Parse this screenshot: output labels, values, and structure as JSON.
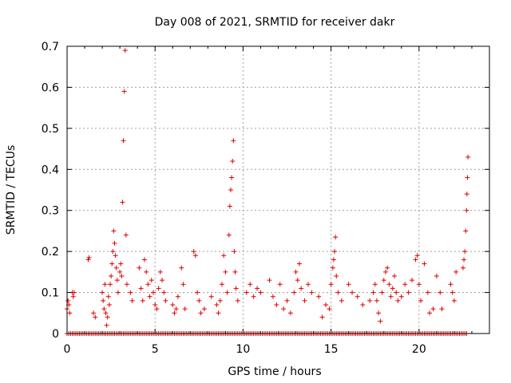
{
  "chart_data": {
    "type": "scatter",
    "title": "Day 008 of 2021, SRMTID for receiver dakr",
    "xlabel": "GPS time / hours",
    "ylabel": "SRMTID / TECUs",
    "xlim": [
      0,
      24
    ],
    "ylim": [
      0,
      0.7
    ],
    "xticks": [
      0,
      5,
      10,
      15,
      20
    ],
    "yticks": [
      0,
      0.1,
      0.2,
      0.3,
      0.4,
      0.5,
      0.6,
      0.7
    ],
    "xtick_labels": [
      "0",
      "5",
      "10",
      "15",
      "20"
    ],
    "ytick_labels": [
      "0",
      "0.1",
      "0.2",
      "0.3",
      "0.4",
      "0.5",
      "0.6",
      "0.7"
    ],
    "grid": true,
    "marker": "+",
    "series": [
      {
        "name": "SRMTID",
        "color": "#e00000",
        "points": [
          [
            0.0,
            0.06
          ],
          [
            0.05,
            0.08
          ],
          [
            0.1,
            0.07
          ],
          [
            0.15,
            0.05
          ],
          [
            0.3,
            0.1
          ],
          [
            0.35,
            0.09
          ],
          [
            0.4,
            0.1
          ],
          [
            1.2,
            0.18
          ],
          [
            1.25,
            0.185
          ],
          [
            1.5,
            0.05
          ],
          [
            1.6,
            0.04
          ],
          [
            2.0,
            0.1
          ],
          [
            2.05,
            0.08
          ],
          [
            2.1,
            0.06
          ],
          [
            2.15,
            0.12
          ],
          [
            2.2,
            0.05
          ],
          [
            2.25,
            0.02
          ],
          [
            2.3,
            0.04
          ],
          [
            2.35,
            0.09
          ],
          [
            2.4,
            0.07
          ],
          [
            2.45,
            0.12
          ],
          [
            2.5,
            0.14
          ],
          [
            2.55,
            0.17
          ],
          [
            2.6,
            0.2
          ],
          [
            2.65,
            0.25
          ],
          [
            2.7,
            0.22
          ],
          [
            2.75,
            0.19
          ],
          [
            2.8,
            0.16
          ],
          [
            2.85,
            0.13
          ],
          [
            2.9,
            0.1
          ],
          [
            3.0,
            0.15
          ],
          [
            3.05,
            0.17
          ],
          [
            3.1,
            0.14
          ],
          [
            3.15,
            0.32
          ],
          [
            3.2,
            0.47
          ],
          [
            3.25,
            0.59
          ],
          [
            3.3,
            0.69
          ],
          [
            3.35,
            0.24
          ],
          [
            3.4,
            0.12
          ],
          [
            3.6,
            0.1
          ],
          [
            3.7,
            0.08
          ],
          [
            4.1,
            0.16
          ],
          [
            4.2,
            0.11
          ],
          [
            4.3,
            0.08
          ],
          [
            4.4,
            0.18
          ],
          [
            4.5,
            0.15
          ],
          [
            4.6,
            0.12
          ],
          [
            4.7,
            0.09
          ],
          [
            4.8,
            0.13
          ],
          [
            4.9,
            0.1
          ],
          [
            5.0,
            0.07
          ],
          [
            5.1,
            0.06
          ],
          [
            5.2,
            0.11
          ],
          [
            5.3,
            0.15
          ],
          [
            5.4,
            0.13
          ],
          [
            5.5,
            0.1
          ],
          [
            5.6,
            0.08
          ],
          [
            6.0,
            0.07
          ],
          [
            6.1,
            0.05
          ],
          [
            6.2,
            0.06
          ],
          [
            6.3,
            0.09
          ],
          [
            6.5,
            0.16
          ],
          [
            6.6,
            0.12
          ],
          [
            6.7,
            0.06
          ],
          [
            7.2,
            0.2
          ],
          [
            7.3,
            0.19
          ],
          [
            7.4,
            0.1
          ],
          [
            7.5,
            0.08
          ],
          [
            7.6,
            0.05
          ],
          [
            7.8,
            0.06
          ],
          [
            8.2,
            0.09
          ],
          [
            8.5,
            0.07
          ],
          [
            8.6,
            0.05
          ],
          [
            8.7,
            0.08
          ],
          [
            8.8,
            0.12
          ],
          [
            8.9,
            0.19
          ],
          [
            9.0,
            0.15
          ],
          [
            9.1,
            0.1
          ],
          [
            9.2,
            0.24
          ],
          [
            9.25,
            0.31
          ],
          [
            9.3,
            0.35
          ],
          [
            9.35,
            0.38
          ],
          [
            9.4,
            0.42
          ],
          [
            9.45,
            0.47
          ],
          [
            9.5,
            0.2
          ],
          [
            9.55,
            0.15
          ],
          [
            9.6,
            0.11
          ],
          [
            9.7,
            0.08
          ],
          [
            10.2,
            0.1
          ],
          [
            10.4,
            0.12
          ],
          [
            10.6,
            0.09
          ],
          [
            10.8,
            0.11
          ],
          [
            11.0,
            0.1
          ],
          [
            11.5,
            0.13
          ],
          [
            11.7,
            0.09
          ],
          [
            11.9,
            0.07
          ],
          [
            12.1,
            0.12
          ],
          [
            12.3,
            0.06
          ],
          [
            12.5,
            0.08
          ],
          [
            12.7,
            0.05
          ],
          [
            12.9,
            0.1
          ],
          [
            13.0,
            0.15
          ],
          [
            13.1,
            0.13
          ],
          [
            13.2,
            0.17
          ],
          [
            13.3,
            0.11
          ],
          [
            13.5,
            0.08
          ],
          [
            13.7,
            0.12
          ],
          [
            13.9,
            0.1
          ],
          [
            14.3,
            0.09
          ],
          [
            14.5,
            0.04
          ],
          [
            14.7,
            0.07
          ],
          [
            14.9,
            0.06
          ],
          [
            15.0,
            0.12
          ],
          [
            15.1,
            0.16
          ],
          [
            15.15,
            0.18
          ],
          [
            15.2,
            0.2
          ],
          [
            15.25,
            0.235
          ],
          [
            15.3,
            0.14
          ],
          [
            15.4,
            0.1
          ],
          [
            15.6,
            0.08
          ],
          [
            16.0,
            0.12
          ],
          [
            16.2,
            0.1
          ],
          [
            16.5,
            0.09
          ],
          [
            16.8,
            0.07
          ],
          [
            17.2,
            0.08
          ],
          [
            17.4,
            0.1
          ],
          [
            17.5,
            0.12
          ],
          [
            17.6,
            0.08
          ],
          [
            17.7,
            0.05
          ],
          [
            17.8,
            0.03
          ],
          [
            17.9,
            0.1
          ],
          [
            18.0,
            0.13
          ],
          [
            18.1,
            0.15
          ],
          [
            18.2,
            0.16
          ],
          [
            18.3,
            0.12
          ],
          [
            18.4,
            0.09
          ],
          [
            18.5,
            0.11
          ],
          [
            18.6,
            0.14
          ],
          [
            18.7,
            0.1
          ],
          [
            18.8,
            0.08
          ],
          [
            19.0,
            0.09
          ],
          [
            19.2,
            0.12
          ],
          [
            19.4,
            0.1
          ],
          [
            19.6,
            0.13
          ],
          [
            19.8,
            0.18
          ],
          [
            19.9,
            0.19
          ],
          [
            20.0,
            0.12
          ],
          [
            20.1,
            0.08
          ],
          [
            20.3,
            0.17
          ],
          [
            20.5,
            0.1
          ],
          [
            20.6,
            0.05
          ],
          [
            20.8,
            0.06
          ],
          [
            21.0,
            0.14
          ],
          [
            21.2,
            0.1
          ],
          [
            21.3,
            0.06
          ],
          [
            21.8,
            0.12
          ],
          [
            21.9,
            0.1
          ],
          [
            22.0,
            0.08
          ],
          [
            22.1,
            0.15
          ],
          [
            22.5,
            0.16
          ],
          [
            22.55,
            0.18
          ],
          [
            22.6,
            0.2
          ],
          [
            22.65,
            0.25
          ],
          [
            22.7,
            0.3
          ],
          [
            22.72,
            0.34
          ],
          [
            22.75,
            0.38
          ],
          [
            22.78,
            0.43
          ]
        ]
      }
    ],
    "zero_points": [
      0.0,
      0.1,
      0.2,
      0.3,
      0.4,
      0.5,
      0.6,
      0.7,
      0.8,
      0.9,
      1.0,
      1.1,
      1.2,
      1.3,
      1.4,
      1.5,
      1.6,
      1.7,
      1.8,
      1.9,
      2.0,
      2.1,
      2.2,
      2.3,
      2.4,
      2.5,
      2.6,
      2.7,
      2.8,
      2.9,
      3.0,
      3.1,
      3.2,
      3.3,
      3.4,
      3.5,
      3.6,
      3.7,
      3.8,
      3.9,
      4.0,
      4.1,
      4.2,
      4.3,
      4.4,
      4.5,
      4.6,
      4.7,
      4.8,
      4.9,
      5.0,
      5.1,
      5.2,
      5.3,
      5.4,
      5.5,
      5.6,
      5.7,
      5.8,
      5.9,
      6.0,
      6.1,
      6.2,
      6.3,
      6.4,
      6.5,
      6.6,
      6.7,
      6.8,
      6.9,
      7.0,
      7.1,
      7.2,
      7.3,
      7.4,
      7.5,
      7.6,
      7.7,
      7.8,
      7.9,
      8.0,
      8.1,
      8.2,
      8.3,
      8.4,
      8.5,
      8.6,
      8.7,
      8.8,
      8.9,
      9.0,
      9.1,
      9.2,
      9.3,
      9.4,
      9.5,
      9.6,
      9.7,
      9.8,
      9.9,
      10.0,
      10.1,
      10.2,
      10.3,
      10.4,
      10.5,
      10.6,
      10.7,
      10.8,
      10.9,
      11.0,
      11.1,
      11.2,
      11.3,
      11.4,
      11.5,
      11.6,
      11.7,
      11.8,
      11.9,
      12.0,
      12.1,
      12.2,
      12.3,
      12.4,
      12.5,
      12.6,
      12.7,
      12.8,
      12.9,
      13.0,
      13.1,
      13.2,
      13.3,
      13.4,
      13.5,
      13.6,
      13.7,
      13.8,
      13.9,
      14.0,
      14.1,
      14.2,
      14.3,
      14.4,
      14.5,
      14.6,
      14.7,
      14.8,
      14.9,
      15.0,
      15.1,
      15.2,
      15.3,
      15.4,
      15.5,
      15.6,
      15.7,
      15.8,
      15.9,
      16.0,
      16.1,
      16.2,
      16.3,
      16.4,
      16.5,
      16.6,
      16.7,
      16.8,
      16.9,
      17.0,
      17.1,
      17.2,
      17.3,
      17.4,
      17.5,
      17.6,
      17.7,
      17.8,
      17.9,
      18.0,
      18.1,
      18.2,
      18.3,
      18.4,
      18.5,
      18.6,
      18.7,
      18.8,
      18.9,
      19.0,
      19.1,
      19.2,
      19.3,
      19.4,
      19.5,
      19.6,
      19.7,
      19.8,
      19.9,
      20.0,
      20.1,
      20.2,
      20.3,
      20.4,
      20.5,
      20.6,
      20.7,
      20.8,
      20.9,
      21.0,
      21.1,
      21.2,
      21.3,
      21.4,
      21.5,
      21.6,
      21.7,
      21.8,
      21.9,
      22.0,
      22.1,
      22.2,
      22.3,
      22.4,
      22.5,
      22.6,
      22.7
    ]
  }
}
